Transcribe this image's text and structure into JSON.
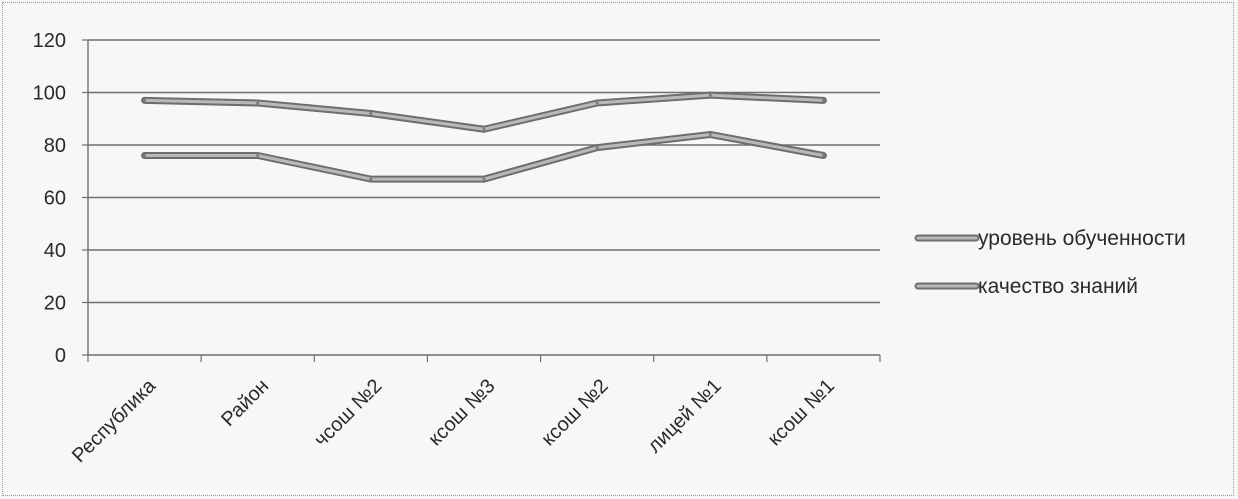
{
  "chart_data": {
    "type": "line",
    "categories": [
      "Республика",
      "Район",
      "чсош №2",
      "ксош №3",
      "ксош №2",
      "лицей №1",
      "ксош №1"
    ],
    "series": [
      {
        "name": "уровень обученности",
        "values": [
          97,
          96,
          92,
          86,
          96,
          99,
          97
        ],
        "color": "#8a8a8a"
      },
      {
        "name": "качество знаний",
        "values": [
          76,
          76,
          67,
          67,
          79,
          84,
          76
        ],
        "color": "#8a8a8a"
      }
    ],
    "yticks": [
      "0",
      "20",
      "40",
      "60",
      "80",
      "100",
      "120"
    ],
    "ylim": [
      0,
      120
    ],
    "grid": true,
    "legend_position": "right"
  }
}
